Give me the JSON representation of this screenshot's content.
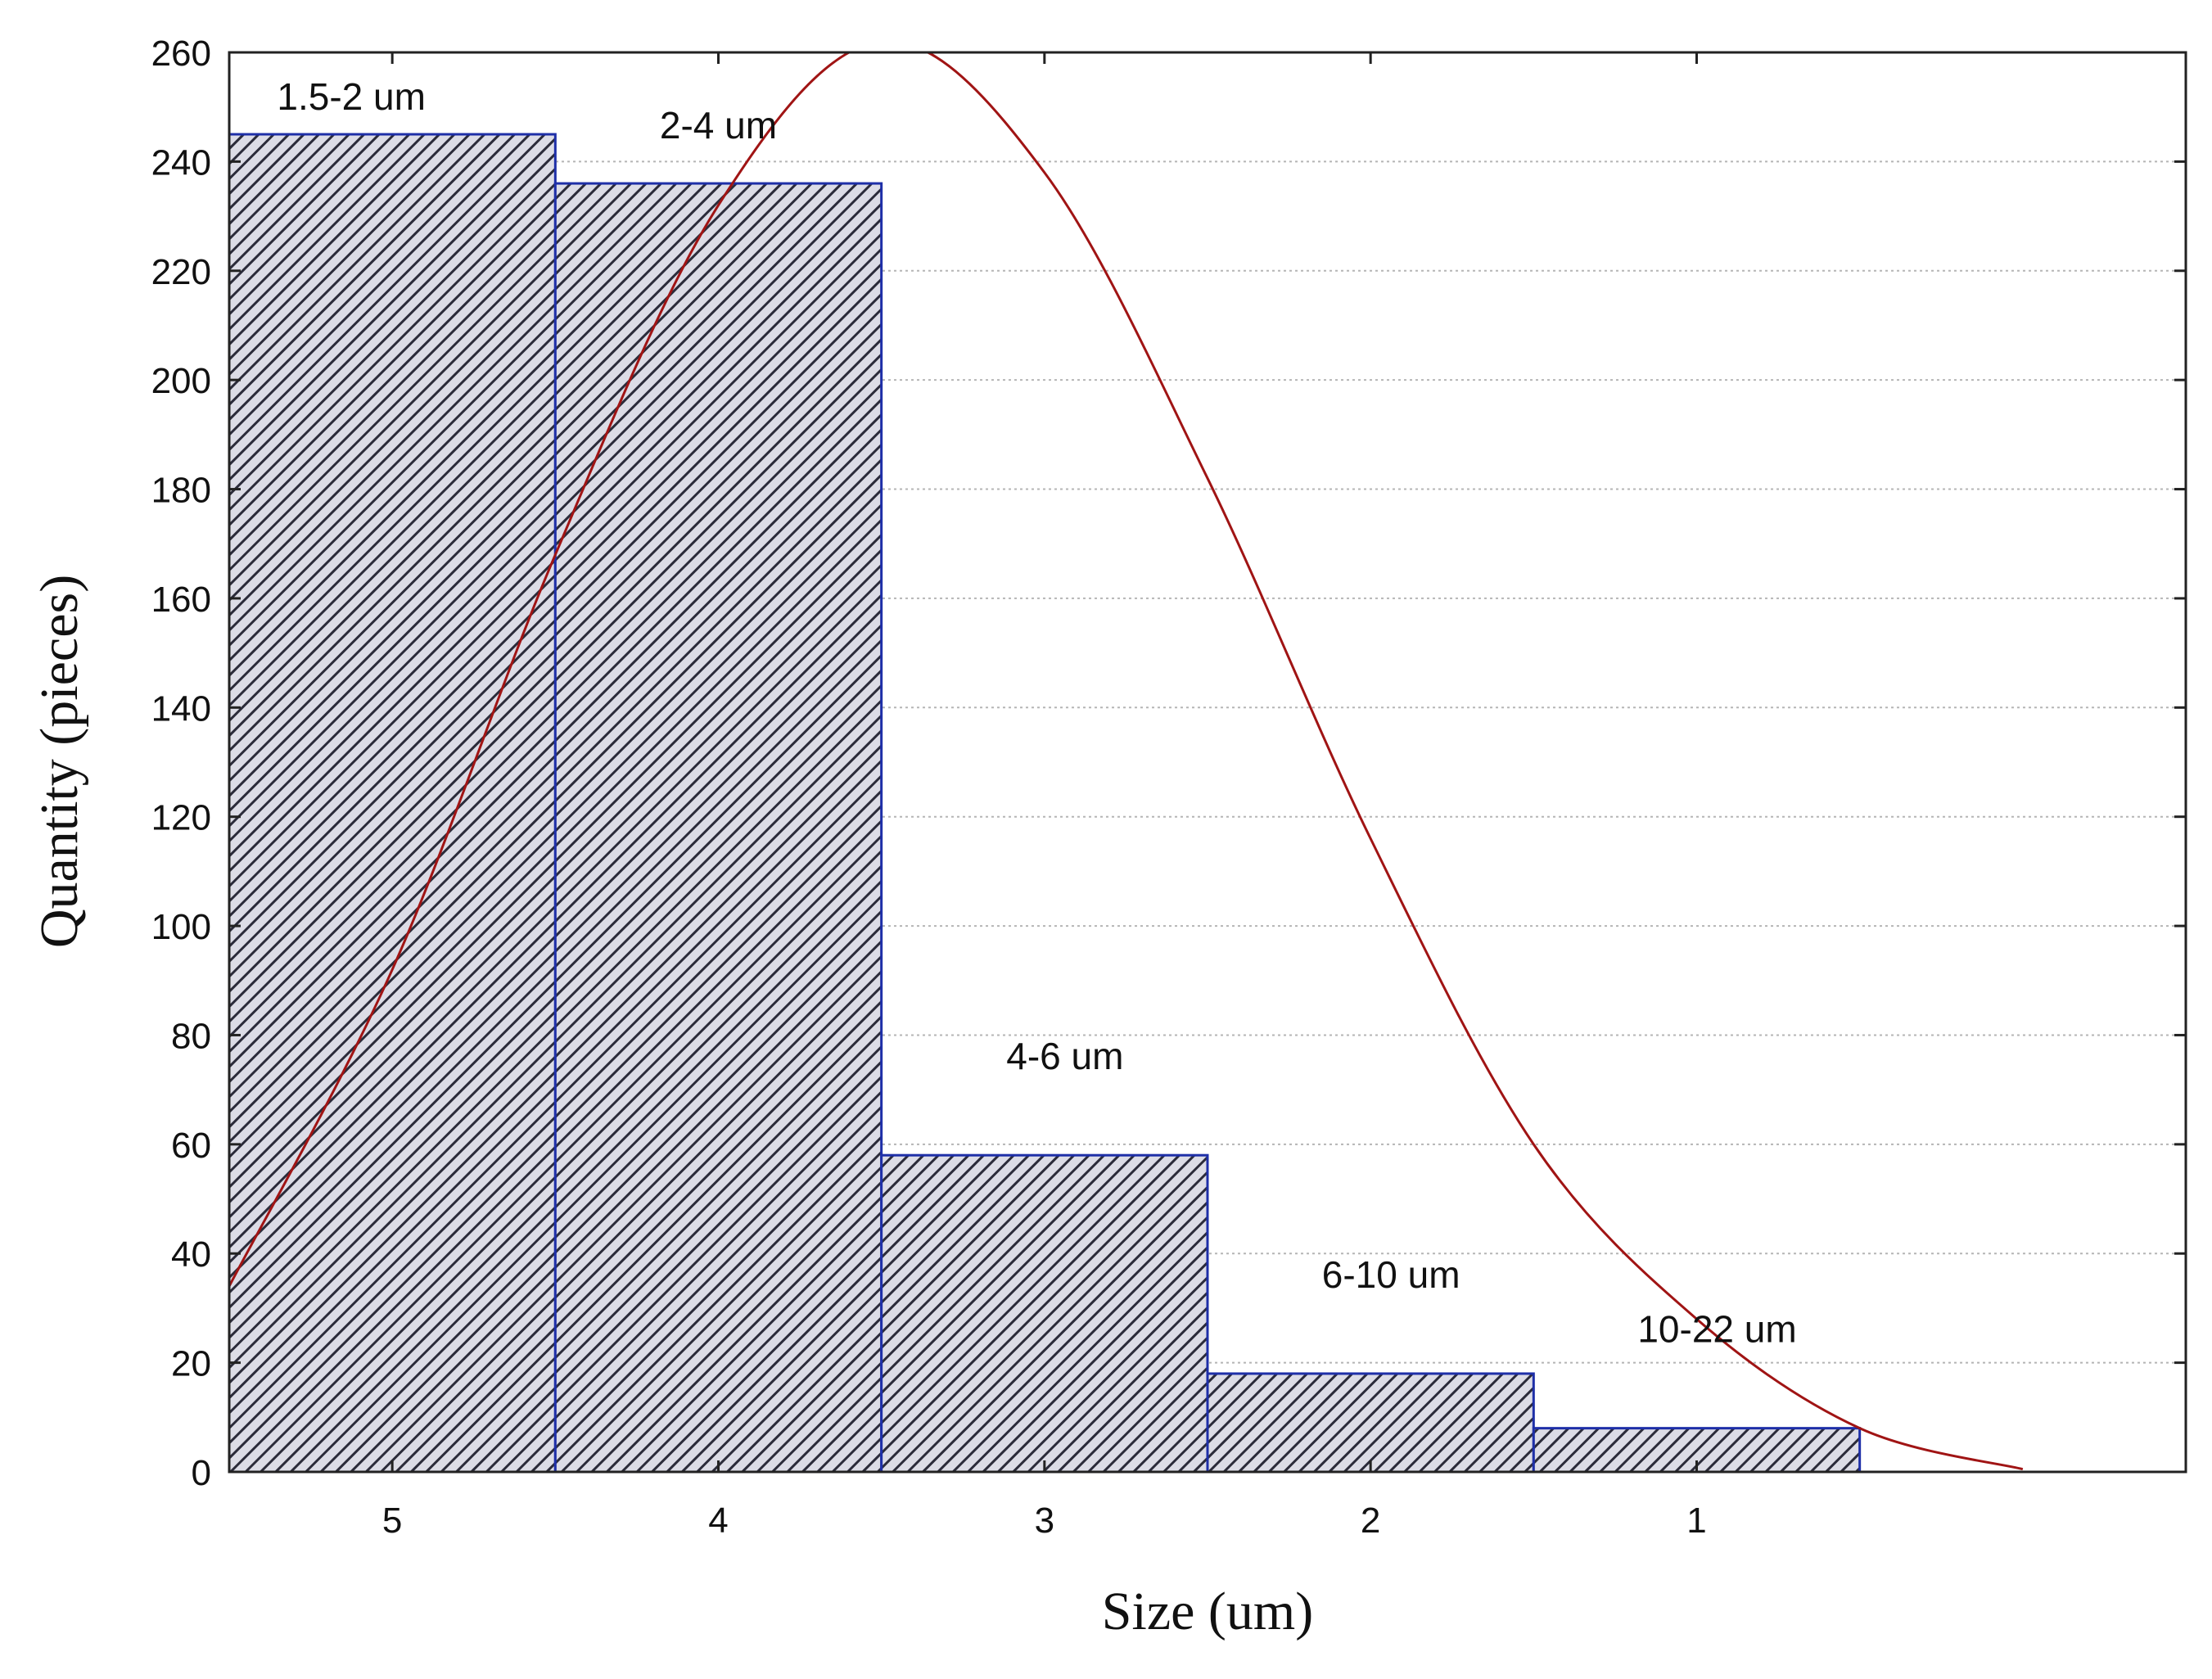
{
  "chart_data": {
    "type": "bar",
    "xlabel": "Size (um)",
    "ylabel": "Quantity (pieces)",
    "ylim": [
      0,
      260
    ],
    "xlim": [
      0.5,
      6.5
    ],
    "y_ticks": [
      0,
      20,
      40,
      60,
      80,
      100,
      120,
      140,
      160,
      180,
      200,
      220,
      240,
      260
    ],
    "categories": [
      "5",
      "4",
      "3",
      "2",
      "1"
    ],
    "values": [
      245,
      236,
      58,
      18,
      8
    ],
    "bar_labels": [
      "1.5-2 um",
      "2-4 um",
      "4-6 um",
      "6-10 um",
      "10-22 um"
    ],
    "grid": "horizontal dotted",
    "legend": "none",
    "fitted_curve": {
      "type": "normal",
      "points": [
        [
          0.5,
          34
        ],
        [
          1.0,
          92
        ],
        [
          1.5,
          168
        ],
        [
          2.0,
          232
        ],
        [
          2.5,
          262
        ],
        [
          3.0,
          238
        ],
        [
          3.5,
          182
        ],
        [
          4.0,
          116
        ],
        [
          4.5,
          60
        ],
        [
          5.0,
          28
        ],
        [
          5.5,
          8
        ],
        [
          6.0,
          0.5
        ]
      ]
    },
    "colors": {
      "bar_edge": "#1e2fa8",
      "bar_fill": "#dcdce6",
      "hatch": "#2b2b3a",
      "curve": "#a01414",
      "grid": "#b5b5b5",
      "axis": "#222222"
    }
  }
}
